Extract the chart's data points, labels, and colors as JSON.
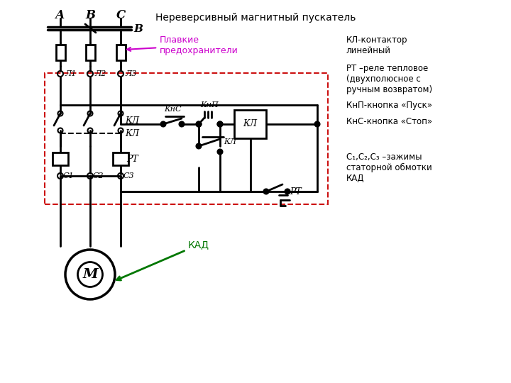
{
  "title": "Нереверсивный магнитный пускатель",
  "legend": [
    [
      "КЛ-контактор",
      "линейный"
    ],
    [
      "РТ –реле тепловое",
      "(двухполюсное с",
      "ручным возвратом)"
    ],
    [
      "КнП-кнопка «Пуск»"
    ],
    [
      "КнС-кнопка «Стоп»"
    ],
    [
      "С₁,С₂,С₃ –зажимы",
      "статорной обмотки",
      "КАД"
    ]
  ],
  "phases": [
    "А",
    "В",
    "С"
  ],
  "fuse_label": "Плавкие\nпредохранители",
  "kns_label": "КнС",
  "knp_label": "КнП",
  "kl_label": "КЛ",
  "rt_label": "РТ",
  "kad_label": "КАД",
  "motor_label": "М",
  "l_labels": [
    "Л1",
    "Л2",
    "Л3"
  ],
  "c_labels": [
    "С1",
    "С2",
    "С3"
  ],
  "b_label": "В"
}
